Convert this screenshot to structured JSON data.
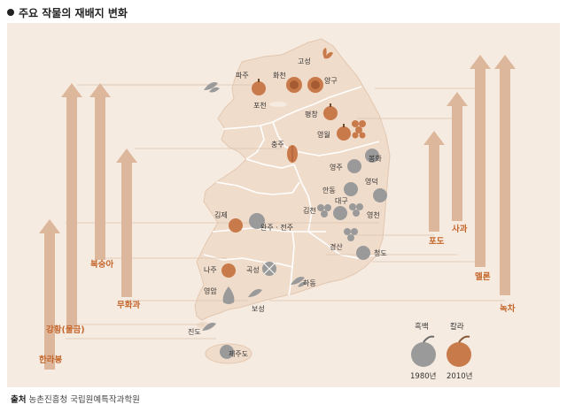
{
  "title": "주요 작물의 재배지 변화",
  "source": {
    "label": "출처",
    "text": "농촌진흥청 국립원예특작과학원"
  },
  "legend": {
    "bw_label": "흑백",
    "color_label": "칼라",
    "bw_year": "1980년",
    "color_year": "2010년"
  },
  "crops_left": [
    {
      "name": "한라봉"
    },
    {
      "name": "강황(울금)"
    },
    {
      "name": "복숭아"
    },
    {
      "name": "무화과"
    }
  ],
  "crops_right": [
    {
      "name": "포도"
    },
    {
      "name": "사과"
    },
    {
      "name": "멜론"
    },
    {
      "name": "녹차"
    }
  ],
  "places": {
    "goseong": "고성",
    "paju": "파주",
    "hwacheon": "화천",
    "yanggu": "양구",
    "pocheon": "포천",
    "pyeongchang": "평창",
    "yeongwol": "영월",
    "chungju": "충주",
    "yeongju": "영주",
    "bonghwa": "봉화",
    "andong": "안동",
    "yeongdeok": "영덕",
    "daegu": "대구",
    "gimcheon": "김천",
    "yeongcheon": "영천",
    "gimje": "김제",
    "wanju": "완주 · 전주",
    "gyeongsan": "경산",
    "cheongdo": "청도",
    "naju": "나주",
    "gokseong": "곡성",
    "hadong": "하동",
    "yeongam": "영암",
    "boseong": "보성",
    "jindo": "진도",
    "jeju": "제주도"
  },
  "colors": {
    "panel": "#f6ebe0",
    "land": "#f0dccb",
    "border": "#ffffff",
    "arrow": "#ddb79b",
    "crop_label": "#c4662c",
    "fruit_2010": "#c97a4a",
    "fruit_1980": "#9a9a9a"
  }
}
